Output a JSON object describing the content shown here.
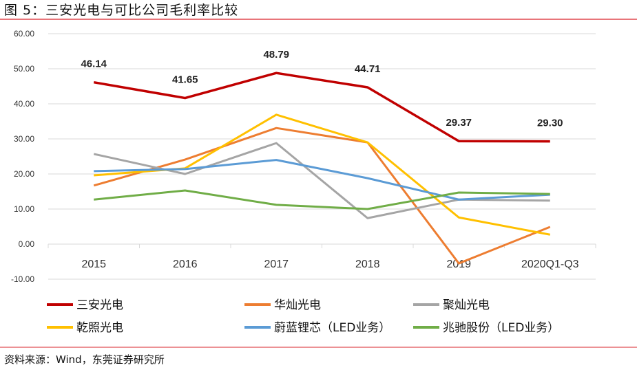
{
  "title": "图 5：三安光电与可比公司毛利率比较",
  "source": "资料来源：Wind，东莞证券研究所",
  "chart_data": {
    "type": "line",
    "title": "图 5：三安光电与可比公司毛利率比较",
    "xlabel": "",
    "ylabel": "",
    "categories": [
      "2015",
      "2016",
      "2017",
      "2018",
      "2019",
      "2020Q1-Q3"
    ],
    "ylim": [
      -10,
      60
    ],
    "yticks": [
      "60.00",
      "50.00",
      "40.00",
      "30.00",
      "20.00",
      "10.00",
      "0.00",
      "-10.00"
    ],
    "grid": true,
    "legend_position": "bottom",
    "series": [
      {
        "name": "三安光电",
        "color": "#C00000",
        "values": [
          46.14,
          41.65,
          48.79,
          44.71,
          29.37,
          29.3
        ],
        "labels": [
          "46.14",
          "41.65",
          "48.79",
          "44.71",
          "29.37",
          "29.30"
        ]
      },
      {
        "name": "华灿光电",
        "color": "#ED7D31",
        "values": [
          16.7,
          24.1,
          33.1,
          29.0,
          -5.5,
          4.9
        ]
      },
      {
        "name": "聚灿光电",
        "color": "#A5A5A5",
        "values": [
          25.7,
          20.0,
          28.8,
          7.4,
          12.7,
          12.4
        ]
      },
      {
        "name": "乾照光电",
        "color": "#FFC000",
        "values": [
          19.6,
          21.6,
          36.9,
          29.0,
          7.6,
          2.7
        ]
      },
      {
        "name": "蔚蓝锂芯（LED业务）",
        "color": "#5B9BD5",
        "values": [
          20.8,
          21.4,
          24.0,
          18.8,
          12.7,
          14.1
        ]
      },
      {
        "name": "兆驰股份（LED业务）",
        "color": "#70AD47",
        "values": [
          12.7,
          15.3,
          11.2,
          10.0,
          14.7,
          14.3
        ]
      }
    ]
  }
}
